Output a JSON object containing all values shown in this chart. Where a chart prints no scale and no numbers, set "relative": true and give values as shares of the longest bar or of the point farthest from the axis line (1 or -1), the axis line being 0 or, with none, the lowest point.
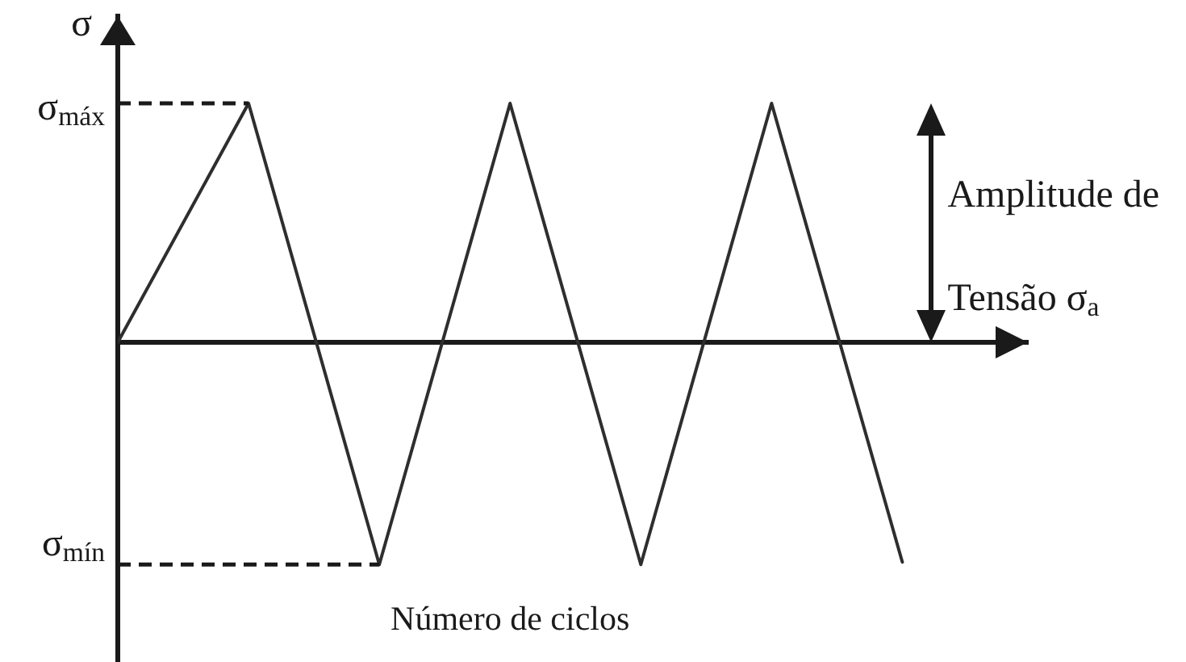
{
  "chart_data": {
    "type": "line",
    "ylabel": "σ",
    "xlabel": "Número de ciclos",
    "categories": [
      null,
      null,
      null,
      null,
      null,
      null,
      null
    ],
    "series": [
      {
        "color": "#2e2e2e",
        "values": [
          0,
          1,
          -0.93,
          1,
          -0.93,
          1,
          -0.92
        ]
      }
    ],
    "relative": true,
    "ref_lines": [
      {
        "axis": "y",
        "value": 1,
        "label": "σ$_{máx}$",
        "line_style": "dashed",
        "color": "#1a1a1a"
      },
      {
        "axis": "y",
        "value": -0.93,
        "label": "σ$_{mín}$",
        "line_style": "dashed",
        "color": "#1a1a1a"
      }
    ],
    "annotations": [
      "Amplitude de Tensão σ$_{a}$"
    ],
    "marker": "none",
    "line_style": "solid"
  }
}
